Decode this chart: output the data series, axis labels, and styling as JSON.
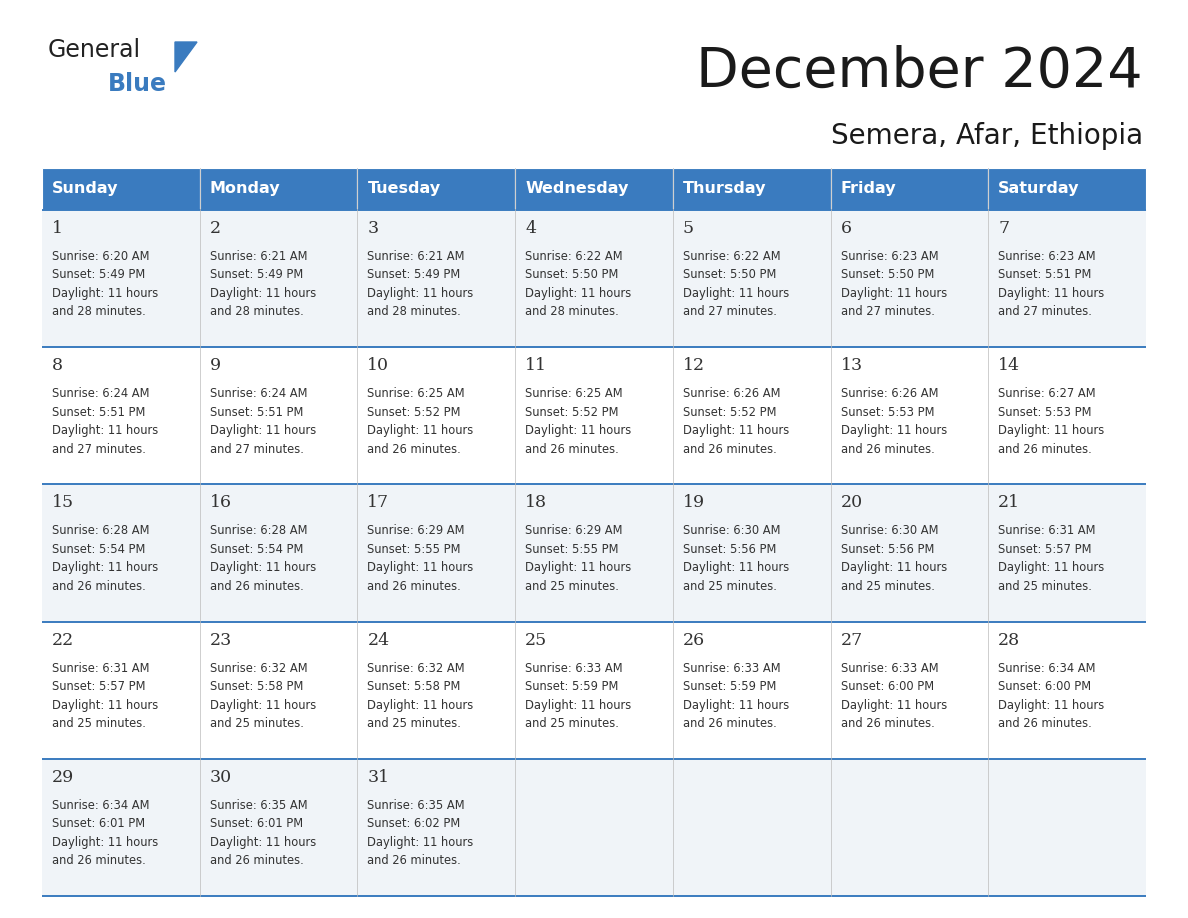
{
  "title": "December 2024",
  "subtitle": "Semera, Afar, Ethiopia",
  "header_color": "#3a7bbf",
  "header_text_color": "#ffffff",
  "days_of_week": [
    "Sunday",
    "Monday",
    "Tuesday",
    "Wednesday",
    "Thursday",
    "Friday",
    "Saturday"
  ],
  "row_bg_even": "#f0f4f8",
  "row_bg_odd": "#ffffff",
  "border_color": "#3a7bbf",
  "text_color": "#333333",
  "calendar_data": [
    [
      {
        "day": 1,
        "sunrise": "6:20 AM",
        "sunset": "5:49 PM",
        "daylight": "11 hours",
        "daylight2": "and 28 minutes."
      },
      {
        "day": 2,
        "sunrise": "6:21 AM",
        "sunset": "5:49 PM",
        "daylight": "11 hours",
        "daylight2": "and 28 minutes."
      },
      {
        "day": 3,
        "sunrise": "6:21 AM",
        "sunset": "5:49 PM",
        "daylight": "11 hours",
        "daylight2": "and 28 minutes."
      },
      {
        "day": 4,
        "sunrise": "6:22 AM",
        "sunset": "5:50 PM",
        "daylight": "11 hours",
        "daylight2": "and 28 minutes."
      },
      {
        "day": 5,
        "sunrise": "6:22 AM",
        "sunset": "5:50 PM",
        "daylight": "11 hours",
        "daylight2": "and 27 minutes."
      },
      {
        "day": 6,
        "sunrise": "6:23 AM",
        "sunset": "5:50 PM",
        "daylight": "11 hours",
        "daylight2": "and 27 minutes."
      },
      {
        "day": 7,
        "sunrise": "6:23 AM",
        "sunset": "5:51 PM",
        "daylight": "11 hours",
        "daylight2": "and 27 minutes."
      }
    ],
    [
      {
        "day": 8,
        "sunrise": "6:24 AM",
        "sunset": "5:51 PM",
        "daylight": "11 hours",
        "daylight2": "and 27 minutes."
      },
      {
        "day": 9,
        "sunrise": "6:24 AM",
        "sunset": "5:51 PM",
        "daylight": "11 hours",
        "daylight2": "and 27 minutes."
      },
      {
        "day": 10,
        "sunrise": "6:25 AM",
        "sunset": "5:52 PM",
        "daylight": "11 hours",
        "daylight2": "and 26 minutes."
      },
      {
        "day": 11,
        "sunrise": "6:25 AM",
        "sunset": "5:52 PM",
        "daylight": "11 hours",
        "daylight2": "and 26 minutes."
      },
      {
        "day": 12,
        "sunrise": "6:26 AM",
        "sunset": "5:52 PM",
        "daylight": "11 hours",
        "daylight2": "and 26 minutes."
      },
      {
        "day": 13,
        "sunrise": "6:26 AM",
        "sunset": "5:53 PM",
        "daylight": "11 hours",
        "daylight2": "and 26 minutes."
      },
      {
        "day": 14,
        "sunrise": "6:27 AM",
        "sunset": "5:53 PM",
        "daylight": "11 hours",
        "daylight2": "and 26 minutes."
      }
    ],
    [
      {
        "day": 15,
        "sunrise": "6:28 AM",
        "sunset": "5:54 PM",
        "daylight": "11 hours",
        "daylight2": "and 26 minutes."
      },
      {
        "day": 16,
        "sunrise": "6:28 AM",
        "sunset": "5:54 PM",
        "daylight": "11 hours",
        "daylight2": "and 26 minutes."
      },
      {
        "day": 17,
        "sunrise": "6:29 AM",
        "sunset": "5:55 PM",
        "daylight": "11 hours",
        "daylight2": "and 26 minutes."
      },
      {
        "day": 18,
        "sunrise": "6:29 AM",
        "sunset": "5:55 PM",
        "daylight": "11 hours",
        "daylight2": "and 25 minutes."
      },
      {
        "day": 19,
        "sunrise": "6:30 AM",
        "sunset": "5:56 PM",
        "daylight": "11 hours",
        "daylight2": "and 25 minutes."
      },
      {
        "day": 20,
        "sunrise": "6:30 AM",
        "sunset": "5:56 PM",
        "daylight": "11 hours",
        "daylight2": "and 25 minutes."
      },
      {
        "day": 21,
        "sunrise": "6:31 AM",
        "sunset": "5:57 PM",
        "daylight": "11 hours",
        "daylight2": "and 25 minutes."
      }
    ],
    [
      {
        "day": 22,
        "sunrise": "6:31 AM",
        "sunset": "5:57 PM",
        "daylight": "11 hours",
        "daylight2": "and 25 minutes."
      },
      {
        "day": 23,
        "sunrise": "6:32 AM",
        "sunset": "5:58 PM",
        "daylight": "11 hours",
        "daylight2": "and 25 minutes."
      },
      {
        "day": 24,
        "sunrise": "6:32 AM",
        "sunset": "5:58 PM",
        "daylight": "11 hours",
        "daylight2": "and 25 minutes."
      },
      {
        "day": 25,
        "sunrise": "6:33 AM",
        "sunset": "5:59 PM",
        "daylight": "11 hours",
        "daylight2": "and 25 minutes."
      },
      {
        "day": 26,
        "sunrise": "6:33 AM",
        "sunset": "5:59 PM",
        "daylight": "11 hours",
        "daylight2": "and 26 minutes."
      },
      {
        "day": 27,
        "sunrise": "6:33 AM",
        "sunset": "6:00 PM",
        "daylight": "11 hours",
        "daylight2": "and 26 minutes."
      },
      {
        "day": 28,
        "sunrise": "6:34 AM",
        "sunset": "6:00 PM",
        "daylight": "11 hours",
        "daylight2": "and 26 minutes."
      }
    ],
    [
      {
        "day": 29,
        "sunrise": "6:34 AM",
        "sunset": "6:01 PM",
        "daylight": "11 hours",
        "daylight2": "and 26 minutes."
      },
      {
        "day": 30,
        "sunrise": "6:35 AM",
        "sunset": "6:01 PM",
        "daylight": "11 hours",
        "daylight2": "and 26 minutes."
      },
      {
        "day": 31,
        "sunrise": "6:35 AM",
        "sunset": "6:02 PM",
        "daylight": "11 hours",
        "daylight2": "and 26 minutes."
      },
      null,
      null,
      null,
      null
    ]
  ]
}
